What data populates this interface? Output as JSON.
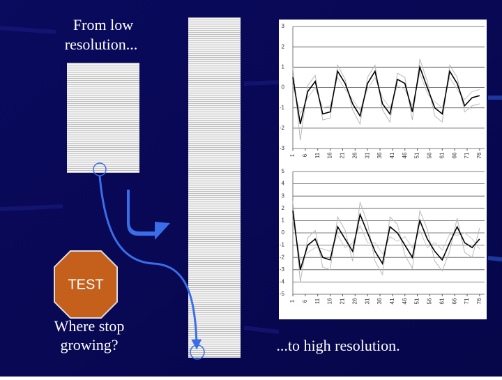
{
  "slide": {
    "left_heading": [
      "From low",
      "resolution..."
    ],
    "stop_sign": "TEST",
    "question": [
      "Where stop",
      "growing?"
    ],
    "caption": "...to high resolution."
  },
  "chart_data": [
    {
      "type": "line",
      "x": [
        1,
        4,
        7,
        10,
        13,
        16,
        19,
        22,
        25,
        28,
        31,
        34,
        37,
        40,
        43,
        46,
        49,
        52,
        55,
        58,
        61,
        64,
        67,
        70,
        73,
        76
      ],
      "xlim": [
        1,
        78
      ],
      "xticks": [
        1,
        6,
        11,
        16,
        21,
        26,
        31,
        36,
        41,
        46,
        51,
        56,
        61,
        66,
        71,
        76
      ],
      "ylim": [
        -3,
        3
      ],
      "yticks": [
        -3,
        -2,
        -1,
        0,
        1,
        2,
        3
      ],
      "grid": true,
      "series": [
        {
          "color": "#b8b8b8",
          "values": [
            1.0,
            -2.6,
            0.1,
            0.6,
            -1.6,
            -1.5,
            1.1,
            0.4,
            -1.1,
            -1.8,
            0.5,
            1.1,
            -1.1,
            -1.7,
            0.7,
            0.5,
            -1.6,
            1.4,
            0.3,
            -1.4,
            -1.7,
            1.1,
            0.5,
            -1.2,
            -0.9,
            -0.8
          ]
        },
        {
          "color": "#c8c8c8",
          "values": [
            0.1,
            -1.3,
            -0.5,
            0.0,
            -1.0,
            -0.9,
            0.5,
            -0.1,
            -0.6,
            -1.1,
            -0.1,
            0.5,
            -0.5,
            -1.0,
            0.1,
            -0.1,
            -0.9,
            0.7,
            -0.3,
            -0.7,
            -1.0,
            0.5,
            -0.1,
            -0.6,
            -0.2,
            -0.1
          ]
        },
        {
          "color": "#000000",
          "values": [
            0.5,
            -1.8,
            -0.2,
            0.3,
            -1.3,
            -1.2,
            0.8,
            0.2,
            -0.8,
            -1.4,
            0.2,
            0.8,
            -0.8,
            -1.3,
            0.4,
            0.2,
            -1.2,
            1.0,
            0.0,
            -1.0,
            -1.3,
            0.8,
            0.2,
            -0.9,
            -0.5,
            -0.4
          ]
        }
      ]
    },
    {
      "type": "line",
      "x": [
        1,
        4,
        7,
        10,
        13,
        16,
        19,
        22,
        25,
        28,
        31,
        34,
        37,
        40,
        43,
        46,
        49,
        52,
        55,
        58,
        61,
        64,
        67,
        70,
        73,
        76
      ],
      "xlim": [
        1,
        78
      ],
      "xticks": [
        1,
        6,
        11,
        16,
        21,
        26,
        31,
        36,
        41,
        46,
        51,
        56,
        61,
        66,
        71,
        76
      ],
      "ylim": [
        -5,
        5
      ],
      "yticks": [
        -5,
        -4,
        -3,
        -2,
        -1,
        0,
        1,
        2,
        3,
        4,
        5
      ],
      "grid": true,
      "series": [
        {
          "color": "#b8b8b8",
          "values": [
            2.6,
            -4.0,
            -0.4,
            0.2,
            -2.8,
            -3.0,
            1.3,
            0.2,
            -2.3,
            2.5,
            0.8,
            -2.3,
            -3.4,
            1.3,
            0.7,
            -1.8,
            -2.9,
            1.8,
            0.3,
            -2.3,
            -3.1,
            -1.5,
            1.2,
            -1.6,
            -2.0,
            0.4
          ]
        },
        {
          "color": "#c8c8c8",
          "values": [
            1.0,
            -2.2,
            -1.6,
            -1.2,
            -1.3,
            -1.5,
            -0.2,
            -1.2,
            -0.8,
            0.6,
            -0.8,
            -0.8,
            -1.7,
            -0.3,
            -0.7,
            -0.3,
            -1.2,
            0.2,
            -1.2,
            -0.8,
            -1.4,
            -0.1,
            -0.2,
            0.0,
            -0.5,
            -1.3
          ]
        },
        {
          "color": "#000000",
          "values": [
            1.8,
            -3.0,
            -1.0,
            -0.5,
            -2.0,
            -2.2,
            0.5,
            -0.5,
            -1.5,
            1.5,
            0.0,
            -1.5,
            -2.5,
            0.5,
            0.0,
            -1.0,
            -2.0,
            1.0,
            -0.5,
            -1.5,
            -2.2,
            -0.8,
            0.5,
            -0.8,
            -1.2,
            -0.5
          ]
        }
      ]
    }
  ]
}
